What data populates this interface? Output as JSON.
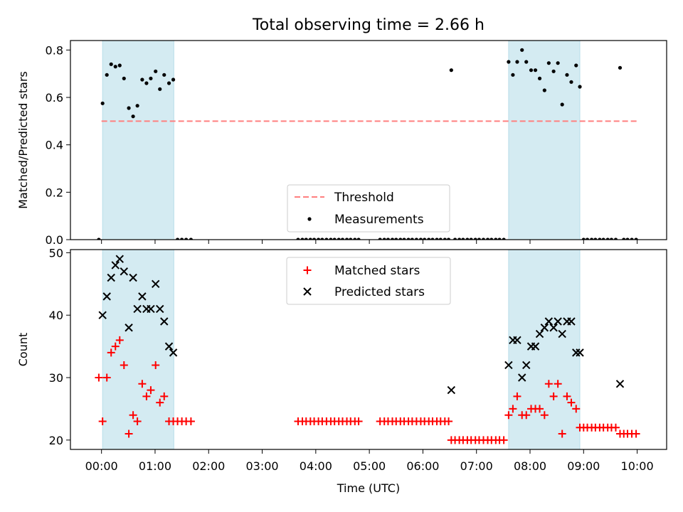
{
  "title": "Total observing time = 2.66 h",
  "colors": {
    "band": "#add8e6",
    "threshold": "#ff7f7f",
    "matched": "#ff0000",
    "predicted": "#000000",
    "measure": "#000000"
  },
  "x_axis": {
    "label": "Time (UTC)",
    "ticks": [
      0,
      1,
      2,
      3,
      4,
      5,
      6,
      7,
      8,
      9,
      10
    ],
    "tick_labels": [
      "00:00",
      "01:00",
      "02:00",
      "03:00",
      "04:00",
      "05:00",
      "06:00",
      "07:00",
      "08:00",
      "09:00",
      "10:00"
    ],
    "range": [
      -0.58,
      10.55
    ]
  },
  "chart_data": [
    {
      "type": "scatter",
      "ylabel": "Matched/Predicted stars",
      "ylim": [
        0,
        0.84
      ],
      "yticks": [
        0.0,
        0.2,
        0.4,
        0.6,
        0.8
      ],
      "ytick_labels": [
        "0.0",
        "0.2",
        "0.4",
        "0.6",
        "0.8"
      ],
      "shaded_intervals": [
        [
          0.02,
          1.35
        ],
        [
          7.6,
          8.93
        ]
      ],
      "threshold": {
        "name": "Threshold",
        "y": 0.5,
        "x": [
          0.0,
          10.0
        ],
        "style": "dashed"
      },
      "measurements": {
        "name": "Measurements",
        "x": [
          -0.05,
          0.02,
          0.1,
          0.18,
          0.26,
          0.34,
          0.42,
          0.51,
          0.59,
          0.67,
          0.76,
          0.84,
          0.92,
          1.01,
          1.09,
          1.17,
          1.26,
          1.34,
          1.42,
          1.5,
          1.58,
          1.67,
          3.67,
          3.75,
          3.82,
          3.9,
          3.97,
          4.05,
          4.12,
          4.2,
          4.28,
          4.35,
          4.43,
          4.5,
          4.58,
          4.65,
          4.73,
          4.8,
          5.2,
          5.28,
          5.35,
          5.43,
          5.5,
          5.58,
          5.65,
          5.73,
          5.8,
          5.88,
          5.96,
          6.03,
          6.11,
          6.18,
          6.26,
          6.33,
          6.41,
          6.48,
          6.53,
          6.6,
          6.68,
          6.75,
          6.83,
          6.9,
          6.98,
          7.05,
          7.13,
          7.21,
          7.28,
          7.36,
          7.43,
          7.51,
          7.6,
          7.68,
          7.76,
          7.85,
          7.93,
          8.02,
          8.1,
          8.18,
          8.27,
          8.35,
          8.44,
          8.52,
          8.6,
          8.69,
          8.77,
          8.86,
          8.93,
          9.0,
          9.07,
          9.15,
          9.22,
          9.3,
          9.37,
          9.45,
          9.52,
          9.6,
          9.68,
          9.75,
          9.82,
          9.9,
          9.98
        ],
        "y": [
          0.0,
          0.575,
          0.695,
          0.74,
          0.73,
          0.735,
          0.68,
          0.555,
          0.52,
          0.565,
          0.675,
          0.66,
          0.68,
          0.71,
          0.635,
          0.695,
          0.66,
          0.675,
          0.0,
          0.0,
          0.0,
          0.0,
          0.0,
          0.0,
          0.0,
          0.0,
          0.0,
          0.0,
          0.0,
          0.0,
          0.0,
          0.0,
          0.0,
          0.0,
          0.0,
          0.0,
          0.0,
          0.0,
          0.0,
          0.0,
          0.0,
          0.0,
          0.0,
          0.0,
          0.0,
          0.0,
          0.0,
          0.0,
          0.0,
          0.0,
          0.0,
          0.0,
          0.0,
          0.0,
          0.0,
          0.0,
          0.715,
          0.0,
          0.0,
          0.0,
          0.0,
          0.0,
          0.0,
          0.0,
          0.0,
          0.0,
          0.0,
          0.0,
          0.0,
          0.0,
          0.75,
          0.695,
          0.75,
          0.8,
          0.75,
          0.715,
          0.715,
          0.68,
          0.63,
          0.745,
          0.71,
          0.745,
          0.57,
          0.695,
          0.665,
          0.735,
          0.645,
          0.0,
          0.0,
          0.0,
          0.0,
          0.0,
          0.0,
          0.0,
          0.0,
          0.0,
          0.725,
          0.0,
          0.0,
          0.0,
          0.0
        ]
      },
      "legend": {
        "placement": "lower-center",
        "labels": [
          "Threshold",
          "Measurements"
        ]
      }
    },
    {
      "type": "scatter",
      "ylabel": "Count",
      "xlabel": "Time (UTC)",
      "ylim": [
        18.5,
        50.5
      ],
      "yticks": [
        20,
        30,
        40,
        50
      ],
      "ytick_labels": [
        "20",
        "30",
        "40",
        "50"
      ],
      "shaded_intervals": [
        [
          0.02,
          1.35
        ],
        [
          7.6,
          8.93
        ]
      ],
      "series": [
        {
          "name": "Matched stars",
          "marker": "plus",
          "x": [
            -0.05,
            0.02,
            0.1,
            0.18,
            0.26,
            0.34,
            0.42,
            0.51,
            0.59,
            0.67,
            0.76,
            0.84,
            0.92,
            1.01,
            1.09,
            1.17,
            1.26,
            1.34,
            1.42,
            1.5,
            1.58,
            1.67,
            3.67,
            3.75,
            3.82,
            3.9,
            3.97,
            4.05,
            4.12,
            4.2,
            4.28,
            4.35,
            4.43,
            4.5,
            4.58,
            4.65,
            4.73,
            4.8,
            5.2,
            5.28,
            5.35,
            5.43,
            5.5,
            5.58,
            5.65,
            5.73,
            5.8,
            5.88,
            5.96,
            6.03,
            6.11,
            6.18,
            6.26,
            6.33,
            6.41,
            6.48,
            6.53,
            6.6,
            6.68,
            6.75,
            6.83,
            6.9,
            6.98,
            7.05,
            7.13,
            7.21,
            7.28,
            7.36,
            7.43,
            7.51,
            7.6,
            7.68,
            7.76,
            7.85,
            7.93,
            8.02,
            8.1,
            8.18,
            8.27,
            8.35,
            8.44,
            8.52,
            8.6,
            8.69,
            8.77,
            8.86,
            8.93,
            9.0,
            9.07,
            9.15,
            9.22,
            9.3,
            9.37,
            9.45,
            9.52,
            9.6,
            9.68,
            9.75,
            9.82,
            9.9,
            9.98
          ],
          "y": [
            30,
            23,
            30,
            34,
            35,
            36,
            32,
            21,
            24,
            23,
            29,
            27,
            28,
            32,
            26,
            27,
            23,
            23,
            23,
            23,
            23,
            23,
            23,
            23,
            23,
            23,
            23,
            23,
            23,
            23,
            23,
            23,
            23,
            23,
            23,
            23,
            23,
            23,
            23,
            23,
            23,
            23,
            23,
            23,
            23,
            23,
            23,
            23,
            23,
            23,
            23,
            23,
            23,
            23,
            23,
            23,
            20,
            20,
            20,
            20,
            20,
            20,
            20,
            20,
            20,
            20,
            20,
            20,
            20,
            20,
            24,
            25,
            27,
            24,
            24,
            25,
            25,
            25,
            24,
            29,
            27,
            29,
            21,
            27,
            26,
            25,
            22,
            22,
            22,
            22,
            22,
            22,
            22,
            22,
            22,
            22,
            21,
            21,
            21,
            21,
            21
          ]
        },
        {
          "name": "Predicted stars",
          "marker": "x",
          "x": [
            0.02,
            0.1,
            0.18,
            0.26,
            0.34,
            0.42,
            0.51,
            0.59,
            0.67,
            0.76,
            0.84,
            0.92,
            1.01,
            1.09,
            1.17,
            1.26,
            1.34,
            6.53,
            7.6,
            7.68,
            7.76,
            7.85,
            7.93,
            8.02,
            8.1,
            8.18,
            8.27,
            8.35,
            8.44,
            8.52,
            8.6,
            8.69,
            8.77,
            8.86,
            8.93,
            9.68
          ],
          "y": [
            40,
            43,
            46,
            48,
            49,
            47,
            38,
            46,
            41,
            43,
            41,
            41,
            45,
            41,
            39,
            35,
            34,
            28,
            32,
            36,
            36,
            30,
            32,
            35,
            35,
            37,
            38,
            39,
            38,
            39,
            37,
            39,
            39,
            34,
            34,
            29
          ]
        }
      ],
      "legend": {
        "placement": "upper-center",
        "labels": [
          "Matched stars",
          "Predicted stars"
        ]
      }
    }
  ]
}
